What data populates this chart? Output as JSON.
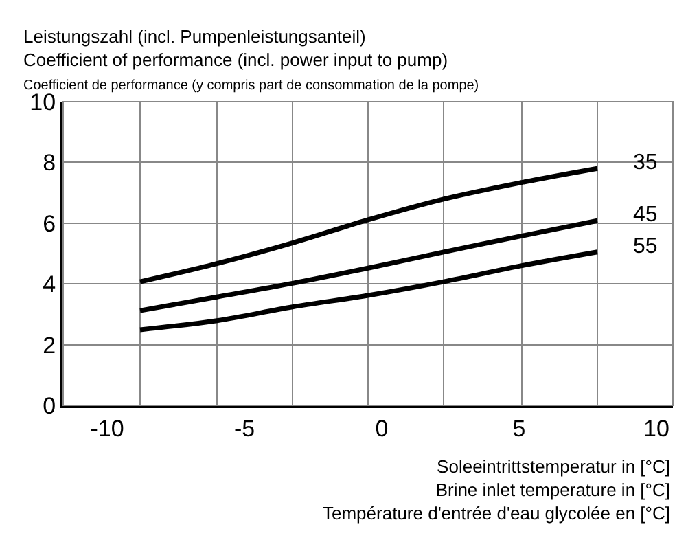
{
  "chart_data": {
    "type": "line",
    "ylabel": "Leistungszahl (incl. Pumpenleistungsanteil)\nCoefficient of performance (incl. power input to pump)\nCoefficient de performance (y compris part de consommation de la pompe)",
    "xlabel": "Soleeintrittstemperatur in [°C]\nBrine inlet temperature in [°C]\nTempérature d'entrée d'eau glycolée en [°C]",
    "x": [
      -8.8,
      -6.0,
      -3.25,
      -0.5,
      2.25,
      5.1,
      7.85
    ],
    "series": [
      {
        "name": "35",
        "color": "#000000",
        "values": [
          4.07,
          4.67,
          5.35,
          6.11,
          6.79,
          7.34,
          7.8
        ]
      },
      {
        "name": "45",
        "color": "#000000",
        "values": [
          3.12,
          3.57,
          4.02,
          4.52,
          5.05,
          5.58,
          6.08
        ]
      },
      {
        "name": "55",
        "color": "#000000",
        "values": [
          2.49,
          2.79,
          3.24,
          3.62,
          4.07,
          4.6,
          5.05
        ]
      }
    ],
    "xlim": [
      -11.6,
      10.6
    ],
    "xticks": [
      -10,
      -5,
      0,
      5,
      10,
      {
        "value": -8.8,
        "label": null
      },
      {
        "value": -6.0,
        "label": null
      },
      {
        "value": -3.25,
        "label": null
      },
      {
        "value": -0.5,
        "label": null
      },
      {
        "value": 2.25,
        "label": null
      },
      {
        "value": 5.1,
        "label": null
      },
      {
        "value": 7.85,
        "label": null
      }
    ],
    "ylim": [
      0,
      10
    ],
    "yticks": [
      0,
      2,
      4,
      6,
      8,
      10
    ],
    "grid": true,
    "legend": false,
    "marker": "none",
    "line_style": "solid"
  }
}
